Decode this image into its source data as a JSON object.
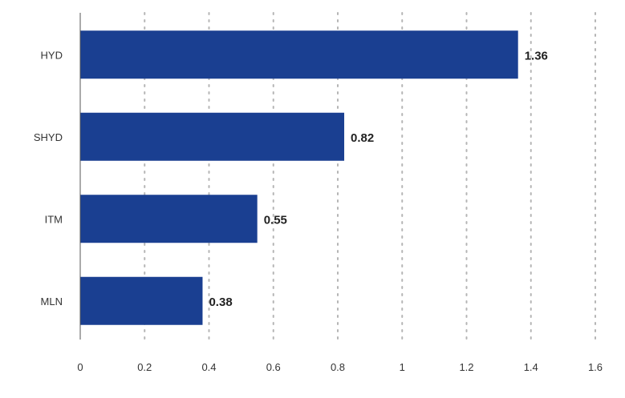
{
  "chart_data": {
    "type": "bar",
    "orientation": "horizontal",
    "categories": [
      "HYD",
      "SHYD",
      "ITM",
      "MLN"
    ],
    "values": [
      1.36,
      0.82,
      0.55,
      0.38
    ],
    "value_labels": [
      "1.36",
      "0.82",
      "0.55",
      "0.38"
    ],
    "x_ticks": [
      "0",
      "0.2",
      "0.4",
      "0.6",
      "0.8",
      "1",
      "1.2",
      "1.4",
      "1.6"
    ],
    "xlim": [
      0,
      1.6
    ],
    "title": "",
    "xlabel": "",
    "ylabel": "",
    "grid": "vertical dotted",
    "legend": "none",
    "bar_color": "#1a3f91"
  }
}
